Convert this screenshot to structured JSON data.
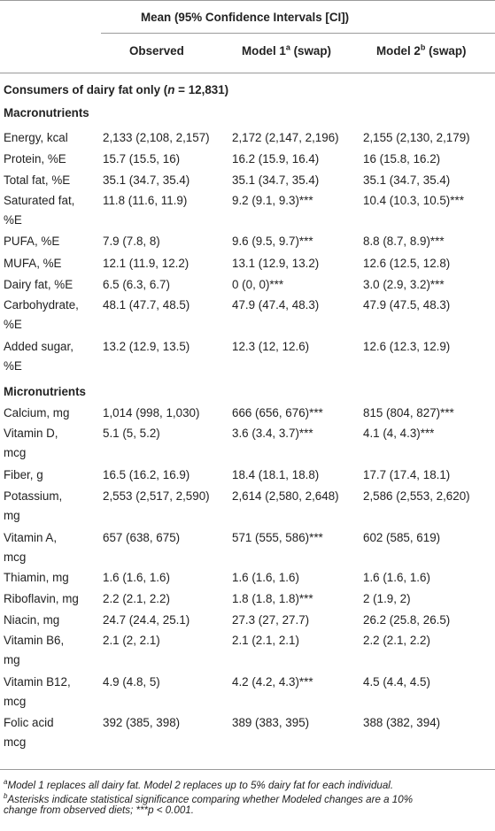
{
  "header": {
    "group_title": "Mean (95% Confidence Intervals [CI])",
    "col_observed": "Observed",
    "col_model1": "Model 1",
    "col_model1_sup": "a",
    "col_model1_suffix": " (swap)",
    "col_model2": "Model 2",
    "col_model2_sup": "b",
    "col_model2_suffix": " (swap)"
  },
  "population": {
    "prefix": "Consumers of dairy fat only (",
    "n_label": "n",
    "suffix": " = 12,831)"
  },
  "sections": {
    "macro": "Macronutrients",
    "micro": "Micronutrients"
  },
  "rows": [
    {
      "l1": "Energy, kcal",
      "l2": "",
      "obs": "2,133 (2,108, 2,157)",
      "m1": "2,172 (2,147, 2,196)",
      "m2": "2,155 (2,130, 2,179)"
    },
    {
      "l1": "Protein, %E",
      "l2": "",
      "obs": "15.7 (15.5, 16)",
      "m1": "16.2 (15.9, 16.4)",
      "m2": "16 (15.8, 16.2)"
    },
    {
      "l1": "Total fat, %E",
      "l2": "",
      "obs": "35.1 (34.7, 35.4)",
      "m1": "35.1 (34.7, 35.4)",
      "m2": "35.1 (34.7, 35.4)"
    },
    {
      "l1": "Saturated fat,",
      "l2": "%E",
      "obs": "11.8 (11.6, 11.9)",
      "m1": "9.2 (9.1, 9.3)***",
      "m2": "10.4 (10.3, 10.5)***"
    },
    {
      "l1": "PUFA, %E",
      "l2": "",
      "obs": "7.9 (7.8, 8)",
      "m1": "9.6 (9.5, 9.7)***",
      "m2": "8.8 (8.7, 8.9)***"
    },
    {
      "l1": "MUFA, %E",
      "l2": "",
      "obs": "12.1 (11.9, 12.2)",
      "m1": "13.1 (12.9, 13.2)",
      "m2": "12.6 (12.5, 12.8)"
    },
    {
      "l1": "Dairy fat, %E",
      "l2": "",
      "obs": "6.5 (6.3, 6.7)",
      "m1": "0 (0, 0)***",
      "m2": "3.0 (2.9, 3.2)***"
    },
    {
      "l1": "Carbohydrate,",
      "l2": "%E",
      "obs": "48.1 (47.7, 48.5)",
      "m1": "47.9 (47.4, 48.3)",
      "m2": "47.9 (47.5, 48.3)"
    },
    {
      "l1": "Added sugar,",
      "l2": "%E",
      "obs": "13.2 (12.9, 13.5)",
      "m1": "12.3 (12, 12.6)",
      "m2": "12.6 (12.3, 12.9)"
    },
    {
      "l1": "Calcium, mg",
      "l2": "",
      "obs": "1,014 (998, 1,030)",
      "m1": "666 (656, 676)***",
      "m2": "815 (804, 827)***"
    },
    {
      "l1": "Vitamin D,",
      "l2": "mcg",
      "obs": "5.1 (5, 5.2)",
      "m1": "3.6 (3.4, 3.7)***",
      "m2": "4.1 (4, 4.3)***"
    },
    {
      "l1": "Fiber, g",
      "l2": "",
      "obs": "16.5 (16.2, 16.9)",
      "m1": "18.4 (18.1, 18.8)",
      "m2": "17.7 (17.4, 18.1)"
    },
    {
      "l1": "Potassium,",
      "l2": "mg",
      "obs": "2,553 (2,517, 2,590)",
      "m1": "2,614 (2,580, 2,648)",
      "m2": "2,586 (2,553, 2,620)"
    },
    {
      "l1": "Vitamin A,",
      "l2": "mcg",
      "obs": "657 (638, 675)",
      "m1": "571 (555, 586)***",
      "m2": "602 (585, 619)"
    },
    {
      "l1": "Thiamin, mg",
      "l2": "",
      "obs": "1.6 (1.6, 1.6)",
      "m1": "1.6 (1.6, 1.6)",
      "m2": "1.6 (1.6, 1.6)"
    },
    {
      "l1": "Riboflavin, mg",
      "l2": "",
      "obs": "2.2 (2.1, 2.2)",
      "m1": "1.8 (1.8, 1.8)***",
      "m2": "2 (1.9, 2)"
    },
    {
      "l1": "Niacin, mg",
      "l2": "",
      "obs": "24.7 (24.4, 25.1)",
      "m1": "27.3 (27, 27.7)",
      "m2": "26.2 (25.8, 26.5)"
    },
    {
      "l1": "Vitamin B6,",
      "l2": "mg",
      "obs": "2.1 (2, 2.1)",
      "m1": "2.1 (2.1, 2.1)",
      "m2": "2.2 (2.1, 2.2)"
    },
    {
      "l1": "Vitamin B12,",
      "l2": "mcg",
      "obs": "4.9 (4.8, 5)",
      "m1": "4.2 (4.2, 4.3)***",
      "m2": "4.5 (4.4, 4.5)"
    },
    {
      "l1": "Folic acid",
      "l2": "mcg",
      "obs": "392 (385, 398)",
      "m1": "389 (383, 395)",
      "m2": "388 (382, 394)"
    }
  ],
  "footnotes": {
    "a_mark": "a",
    "a_text": "Model 1 replaces all dairy fat. Model 2 replaces up to 5% dairy fat for each individual.",
    "b_mark": "b",
    "b_text": "Asterisks indicate statistical significance comparing whether Modeled changes are a 10%",
    "b_text2_pre": "change from observed diets; ***",
    "b_p": "p",
    "b_text2_post": " < 0.001."
  }
}
